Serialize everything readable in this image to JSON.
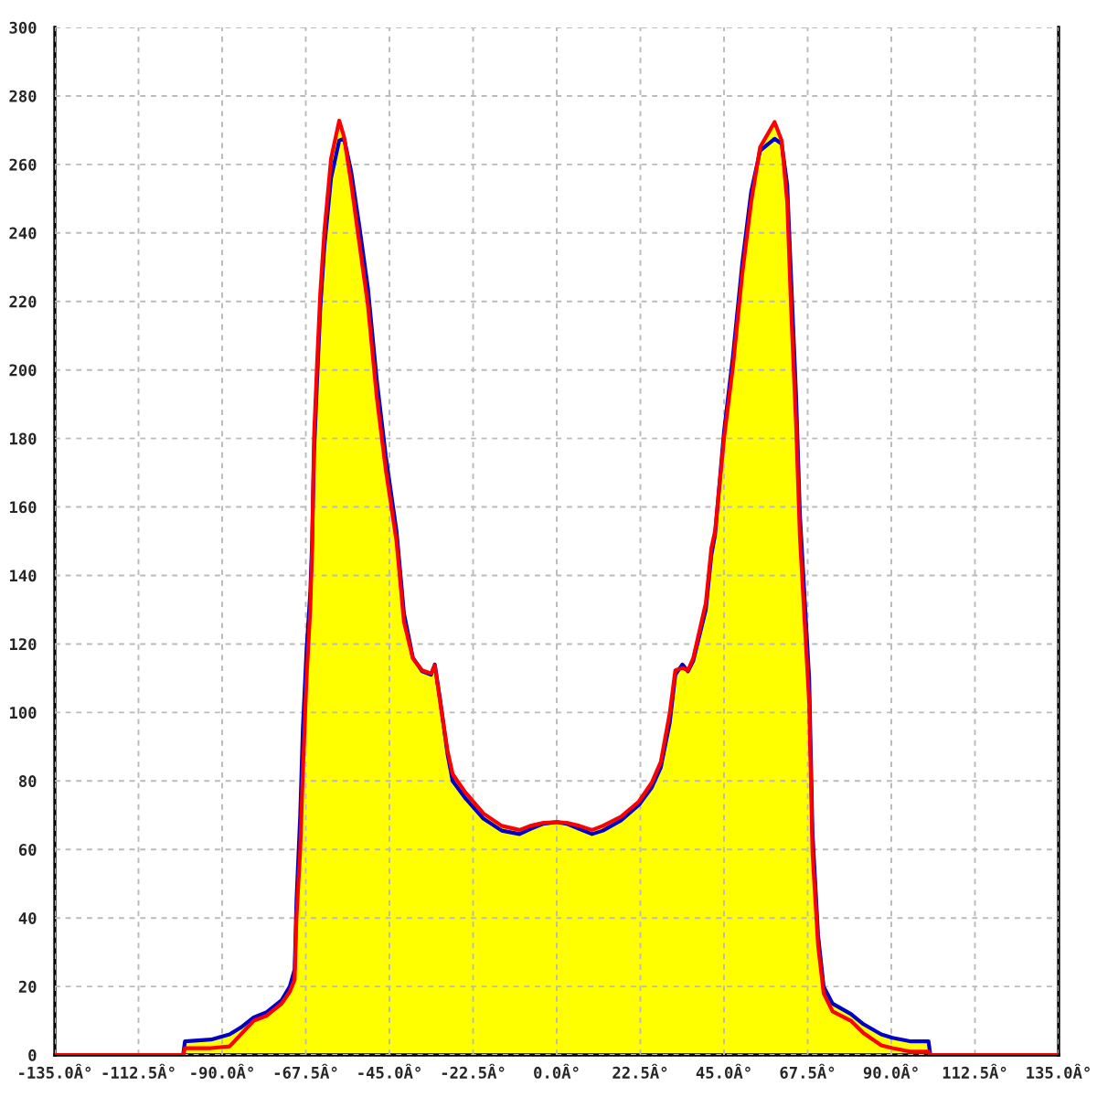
{
  "chart_data": {
    "type": "line",
    "x": [
      -135,
      -100.5,
      -100,
      -93,
      -88,
      -85,
      -81.5,
      -78,
      -74,
      -71.8,
      -70.5,
      -70,
      -69,
      -68.3,
      -67.3,
      -66.3,
      -65.8,
      -65.3,
      -64.5,
      -63.6,
      -62.5,
      -60.7,
      -58.5,
      -57.2,
      -55.3,
      -53.1,
      -50.8,
      -48.4,
      -46,
      -43.1,
      -41.1,
      -38.7,
      -36.2,
      -33.8,
      -32.8,
      -31.4,
      -29.4,
      -28,
      -24.6,
      -19.7,
      -14.8,
      -10,
      -7.1,
      -3.6,
      0,
      2.7,
      6.1,
      9.5,
      12.4,
      17.3,
      22.1,
      25.5,
      28,
      30.4,
      31.9,
      33.8,
      35.3,
      36.7,
      40.1,
      41.6,
      42.6,
      45,
      47.4,
      49.9,
      52.3,
      54.7,
      58.6,
      60.5,
      62,
      63,
      64.4,
      65.4,
      67.9,
      68.8,
      70.3,
      71.8,
      74.2,
      79.1,
      82.5,
      87.3,
      90.3,
      95,
      100,
      100.5,
      135
    ],
    "series": [
      {
        "type": "area",
        "color": "#ffff00",
        "x": [
          -100.5,
          -100,
          -93,
          -88,
          -85,
          -81.5,
          -78,
          -74,
          -71.8,
          -70.5,
          -70,
          -69,
          -68.3,
          -67.3,
          -66.3,
          -65.8,
          -65.3,
          -64.5,
          -63.6,
          -62.5,
          -60.7,
          -58.5,
          -57.2,
          -55.3,
          -53.1,
          -50.8,
          -48.4,
          -46,
          -43.1,
          -41.1,
          -38.7,
          -36.2,
          -33.8,
          -32.8,
          -31.4,
          -29.4,
          -28,
          -24.6,
          -19.7,
          -14.8,
          -10,
          -7.1,
          -3.6,
          0,
          2.7,
          6.1,
          9.5,
          12.4,
          17.3,
          22.1,
          25.5,
          28,
          30.4,
          31.9,
          33.8,
          35.3,
          36.7,
          40.1,
          41.6,
          42.6,
          45,
          47.4,
          49.9,
          52.3,
          54.7,
          58.6,
          60.5,
          62,
          63,
          64.4,
          65.4,
          67.9,
          68.8,
          70.3,
          71.8,
          74.2,
          79.1,
          82.5,
          87.3,
          90.3,
          95,
          100,
          100.5
        ],
        "values": [
          0,
          4,
          4.5,
          6,
          8,
          11,
          12.5,
          16,
          20,
          25,
          45,
          70,
          95,
          118,
          135,
          150,
          180,
          201,
          222.6,
          240.4,
          261.7,
          272.8,
          268,
          258,
          242,
          224,
          197,
          175,
          153,
          129,
          116,
          112.3,
          111.4,
          114,
          104,
          89,
          82,
          76.7,
          70.5,
          66.9,
          65.7,
          66.9,
          67.8,
          68,
          67.8,
          66.9,
          65.7,
          66.9,
          69.6,
          74,
          79.4,
          85.6,
          99.8,
          112.3,
          114,
          112.3,
          115.8,
          131.9,
          148,
          153,
          182,
          204,
          231,
          252,
          265,
          272.4,
          267,
          254,
          228,
          192,
          158,
          110,
          65,
          35,
          20,
          15,
          12,
          9,
          6,
          5,
          4,
          4,
          0
        ]
      },
      {
        "color": "#0000c8",
        "values": [
          0,
          0,
          4,
          4.5,
          6,
          8,
          11,
          12.5,
          16,
          20,
          25,
          45,
          70,
          95,
          118,
          135,
          150,
          175,
          196,
          218,
          236,
          256,
          267,
          267.5,
          258,
          242,
          224,
          197,
          175,
          153,
          129,
          116,
          112,
          111,
          114,
          104,
          88,
          80,
          75,
          69,
          65.5,
          64.5,
          66,
          67.5,
          68,
          67.5,
          66,
          64.5,
          65.5,
          68.5,
          73,
          78,
          84,
          97,
          111,
          114,
          112,
          115,
          130,
          146,
          152,
          182,
          204,
          231,
          252,
          264,
          267.5,
          266,
          254,
          228,
          192,
          158,
          110,
          65,
          35,
          20,
          15,
          12,
          9,
          6,
          5,
          4,
          4,
          0,
          0
        ]
      },
      {
        "color": "#ff0000",
        "values": [
          0,
          0,
          2,
          2,
          2.5,
          6,
          10,
          11.5,
          15,
          18.5,
          22,
          40,
          60,
          82,
          110,
          130,
          148,
          180,
          201,
          222.6,
          240.4,
          261.7,
          272.8,
          268,
          254.6,
          237,
          219,
          192,
          171,
          150,
          126.5,
          115.8,
          112.3,
          111.4,
          113.7,
          103.4,
          89,
          82,
          76.7,
          70.5,
          66.9,
          65.7,
          66.9,
          67.8,
          68,
          67.8,
          66.9,
          65.7,
          66.9,
          69.6,
          74,
          79.4,
          85.6,
          99.8,
          112.3,
          113,
          112.3,
          115.8,
          131.9,
          148,
          153,
          180,
          201,
          228,
          249,
          265,
          272.4,
          267,
          249,
          219,
          183.5,
          151.5,
          103,
          59,
          32,
          18,
          12.7,
          10,
          6.4,
          2.8,
          2,
          1,
          1,
          0,
          0
        ]
      }
    ],
    "xlim": [
      -135,
      135
    ],
    "xticks": [
      {
        "value": -135,
        "label": "-135.0Â°"
      },
      {
        "value": -112.5,
        "label": "-112.5Â°"
      },
      {
        "value": -90,
        "label": "-90.0Â°"
      },
      {
        "value": -67.5,
        "label": "-67.5Â°"
      },
      {
        "value": -45,
        "label": "-45.0Â°"
      },
      {
        "value": -22.5,
        "label": "-22.5Â°"
      },
      {
        "value": 0,
        "label": "0.0Â°"
      },
      {
        "value": 22.5,
        "label": "22.5Â°"
      },
      {
        "value": 45,
        "label": "45.0Â°"
      },
      {
        "value": 67.5,
        "label": "67.5Â°"
      },
      {
        "value": 90,
        "label": "90.0Â°"
      },
      {
        "value": 112.5,
        "label": "112.5Â°"
      },
      {
        "value": 135,
        "label": "135.0Â°"
      }
    ],
    "ylim": [
      0,
      300
    ],
    "yticks": [
      0,
      20,
      40,
      60,
      80,
      100,
      120,
      140,
      160,
      180,
      200,
      220,
      240,
      260,
      280,
      300
    ],
    "grid": true
  }
}
